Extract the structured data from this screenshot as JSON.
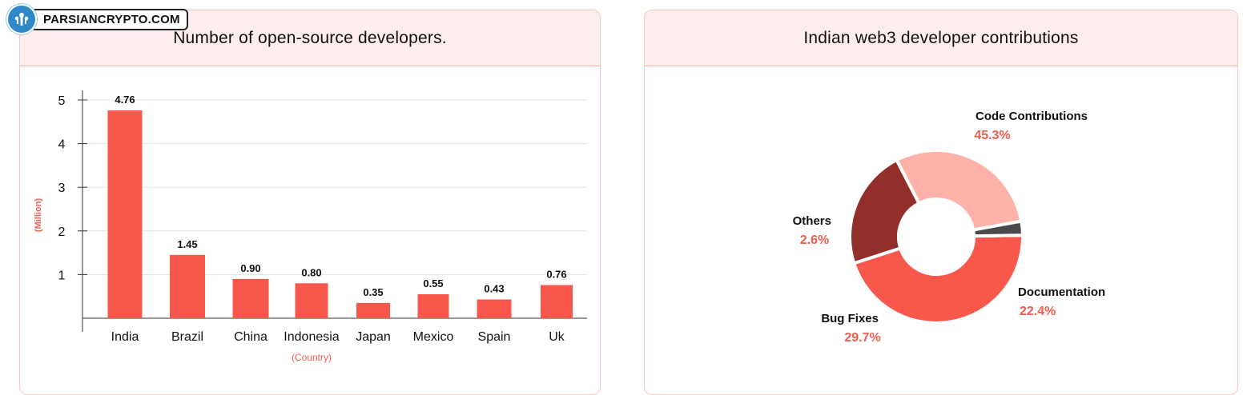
{
  "brand": {
    "name": "PARSIANCRYPTO.COM"
  },
  "colors": {
    "bar": "#f8574b",
    "accent_text": "#f25b4f",
    "pie": [
      "#f8574b",
      "#922f2b",
      "#ffb2aa",
      "#4a4a4a"
    ]
  },
  "chart_data": [
    {
      "type": "bar",
      "title": "Number of open-source developers.",
      "xlabel": "(Country)",
      "ylabel": "(Million)",
      "categories": [
        "India",
        "Brazil",
        "China",
        "Indonesia",
        "Japan",
        "Mexico",
        "Spain",
        "Uk"
      ],
      "values": [
        4.76,
        1.45,
        0.9,
        0.8,
        0.35,
        0.55,
        0.43,
        0.76
      ],
      "value_labels": [
        "4.76",
        "1.45",
        "0.90",
        "0.80",
        "0.35",
        "0.55",
        "0.43",
        "0.76"
      ],
      "yticks": [
        "1",
        "2",
        "3",
        "4",
        "5"
      ],
      "ylim": [
        0,
        5
      ]
    },
    {
      "type": "pie",
      "title": "Indian web3 developer contributions",
      "slices": [
        {
          "label": "Code Contributions",
          "value": 45.3,
          "pct_label": "45.3%"
        },
        {
          "label": "Documentation",
          "value": 22.4,
          "pct_label": "22.4%"
        },
        {
          "label": "Bug Fixes",
          "value": 29.7,
          "pct_label": "29.7%"
        },
        {
          "label": "Others",
          "value": 2.6,
          "pct_label": "2.6%"
        }
      ]
    }
  ]
}
